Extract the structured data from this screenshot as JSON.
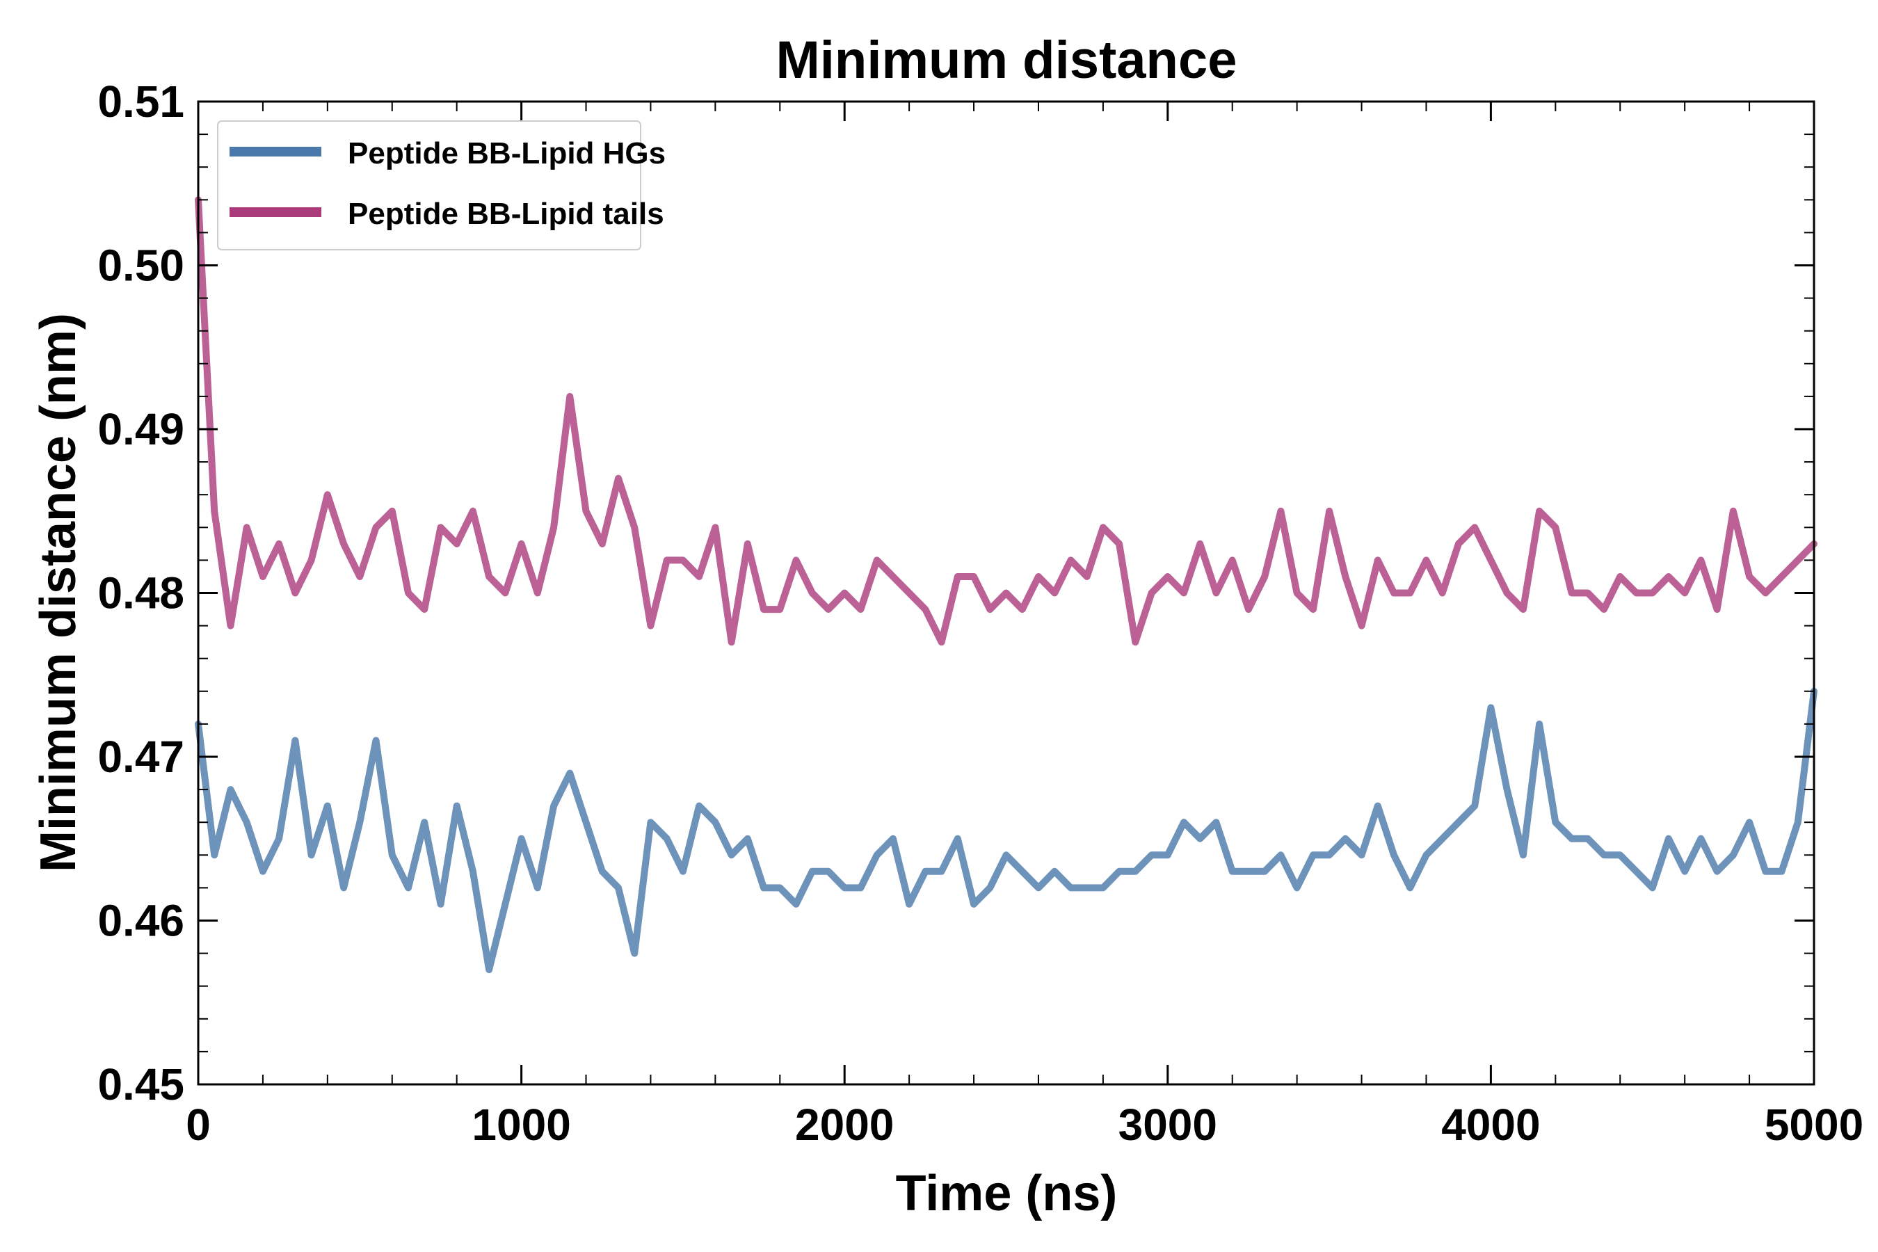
{
  "chart_data": {
    "type": "line",
    "title": "Minimum distance",
    "xlabel": "Time (ns)",
    "ylabel": "Minimum distance (nm)",
    "xlim": [
      0,
      5000
    ],
    "ylim": [
      0.45,
      0.51
    ],
    "xticks": [
      0,
      1000,
      2000,
      3000,
      4000,
      5000
    ],
    "xtick_labels": [
      "0",
      "1000",
      "2000",
      "3000",
      "4000",
      "5000"
    ],
    "yticks": [
      0.45,
      0.46,
      0.47,
      0.48,
      0.49,
      0.5,
      0.51
    ],
    "ytick_labels": [
      "0.45",
      "0.46",
      "0.47",
      "0.48",
      "0.49",
      "0.50",
      "0.51"
    ],
    "grid": false,
    "legend_position": "top-left",
    "series": [
      {
        "name": "Peptide BB-Lipid HGs",
        "color": "#4a78aa",
        "x": [
          0,
          50,
          100,
          150,
          200,
          250,
          300,
          350,
          400,
          450,
          500,
          550,
          600,
          650,
          700,
          750,
          800,
          850,
          900,
          950,
          1000,
          1050,
          1100,
          1150,
          1200,
          1250,
          1300,
          1350,
          1400,
          1450,
          1500,
          1550,
          1600,
          1650,
          1700,
          1750,
          1800,
          1850,
          1900,
          1950,
          2000,
          2050,
          2100,
          2150,
          2200,
          2250,
          2300,
          2350,
          2400,
          2450,
          2500,
          2550,
          2600,
          2650,
          2700,
          2750,
          2800,
          2850,
          2900,
          2950,
          3000,
          3050,
          3100,
          3150,
          3200,
          3250,
          3300,
          3350,
          3400,
          3450,
          3500,
          3550,
          3600,
          3650,
          3700,
          3750,
          3800,
          3850,
          3900,
          3950,
          4000,
          4050,
          4100,
          4150,
          4200,
          4250,
          4300,
          4350,
          4400,
          4450,
          4500,
          4550,
          4600,
          4650,
          4700,
          4750,
          4800,
          4850,
          4900,
          4950,
          5000
        ],
        "values": [
          0.472,
          0.464,
          0.468,
          0.466,
          0.463,
          0.465,
          0.471,
          0.464,
          0.467,
          0.462,
          0.466,
          0.471,
          0.464,
          0.462,
          0.466,
          0.461,
          0.467,
          0.463,
          0.457,
          0.461,
          0.465,
          0.462,
          0.467,
          0.469,
          0.466,
          0.463,
          0.462,
          0.458,
          0.466,
          0.465,
          0.463,
          0.467,
          0.466,
          0.464,
          0.465,
          0.462,
          0.462,
          0.461,
          0.463,
          0.463,
          0.462,
          0.462,
          0.464,
          0.465,
          0.461,
          0.463,
          0.463,
          0.465,
          0.461,
          0.462,
          0.464,
          0.463,
          0.462,
          0.463,
          0.462,
          0.462,
          0.462,
          0.463,
          0.463,
          0.464,
          0.464,
          0.466,
          0.465,
          0.466,
          0.463,
          0.463,
          0.463,
          0.464,
          0.462,
          0.464,
          0.464,
          0.465,
          0.464,
          0.467,
          0.464,
          0.462,
          0.464,
          0.465,
          0.466,
          0.467,
          0.473,
          0.468,
          0.464,
          0.472,
          0.466,
          0.465,
          0.465,
          0.464,
          0.464,
          0.463,
          0.462,
          0.465,
          0.463,
          0.465,
          0.463,
          0.464,
          0.466,
          0.463,
          0.463,
          0.466,
          0.474
        ]
      },
      {
        "name": "Peptide BB-Lipid tails",
        "color": "#aa3a7a",
        "x": [
          0,
          50,
          100,
          150,
          200,
          250,
          300,
          350,
          400,
          450,
          500,
          550,
          600,
          650,
          700,
          750,
          800,
          850,
          900,
          950,
          1000,
          1050,
          1100,
          1150,
          1200,
          1250,
          1300,
          1350,
          1400,
          1450,
          1500,
          1550,
          1600,
          1650,
          1700,
          1750,
          1800,
          1850,
          1900,
          1950,
          2000,
          2050,
          2100,
          2150,
          2200,
          2250,
          2300,
          2350,
          2400,
          2450,
          2500,
          2550,
          2600,
          2650,
          2700,
          2750,
          2800,
          2850,
          2900,
          2950,
          3000,
          3050,
          3100,
          3150,
          3200,
          3250,
          3300,
          3350,
          3400,
          3450,
          3500,
          3550,
          3600,
          3650,
          3700,
          3750,
          3800,
          3850,
          3900,
          3950,
          4000,
          4050,
          4100,
          4150,
          4200,
          4250,
          4300,
          4350,
          4400,
          4450,
          4500,
          4550,
          4600,
          4650,
          4700,
          4750,
          4800,
          4850,
          4900,
          4950,
          5000
        ],
        "values": [
          0.504,
          0.485,
          0.478,
          0.484,
          0.481,
          0.483,
          0.48,
          0.482,
          0.486,
          0.483,
          0.481,
          0.484,
          0.485,
          0.48,
          0.479,
          0.484,
          0.483,
          0.485,
          0.481,
          0.48,
          0.483,
          0.48,
          0.484,
          0.492,
          0.485,
          0.483,
          0.487,
          0.484,
          0.478,
          0.482,
          0.482,
          0.481,
          0.484,
          0.477,
          0.483,
          0.479,
          0.479,
          0.482,
          0.48,
          0.479,
          0.48,
          0.479,
          0.482,
          0.481,
          0.48,
          0.479,
          0.477,
          0.481,
          0.481,
          0.479,
          0.48,
          0.479,
          0.481,
          0.48,
          0.482,
          0.481,
          0.484,
          0.483,
          0.477,
          0.48,
          0.481,
          0.48,
          0.483,
          0.48,
          0.482,
          0.479,
          0.481,
          0.485,
          0.48,
          0.479,
          0.485,
          0.481,
          0.478,
          0.482,
          0.48,
          0.48,
          0.482,
          0.48,
          0.483,
          0.484,
          0.482,
          0.48,
          0.479,
          0.485,
          0.484,
          0.48,
          0.48,
          0.479,
          0.481,
          0.48,
          0.48,
          0.481,
          0.48,
          0.482,
          0.479,
          0.485,
          0.481,
          0.48,
          0.481,
          0.482,
          0.483
        ]
      }
    ]
  }
}
